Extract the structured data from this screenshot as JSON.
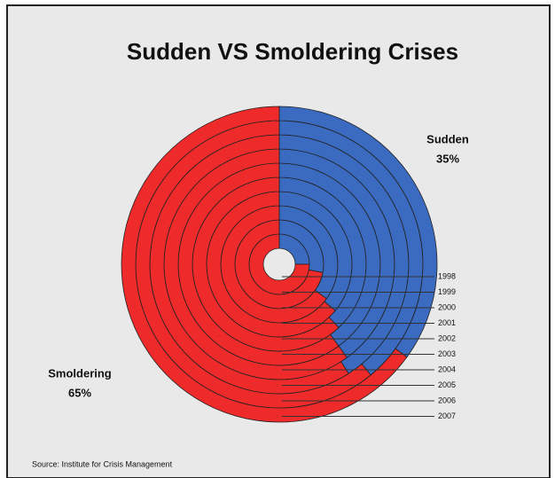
{
  "chart_data": {
    "type": "ring-pie",
    "title": "Sudden VS Smoldering Crises",
    "source": "Source: Institute for Crisis Management",
    "categories": [
      "1998",
      "1999",
      "2000",
      "2001",
      "2002",
      "2003",
      "2004",
      "2005",
      "2006",
      "2007"
    ],
    "series": [
      {
        "name": "Sudden",
        "color": "#3a6bc0",
        "values": [
          25,
          28,
          35,
          36,
          38,
          40,
          40,
          41,
          39,
          35
        ],
        "value_labels": [
          null,
          null,
          null,
          null,
          null,
          null,
          null,
          null,
          null,
          "35%"
        ]
      },
      {
        "name": "Smoldering",
        "color": "#ee2a2a",
        "values": [
          75,
          72,
          65,
          64,
          62,
          60,
          60,
          59,
          61,
          65
        ],
        "value_labels": [
          null,
          null,
          null,
          null,
          null,
          null,
          null,
          null,
          null,
          "65%"
        ]
      }
    ]
  }
}
